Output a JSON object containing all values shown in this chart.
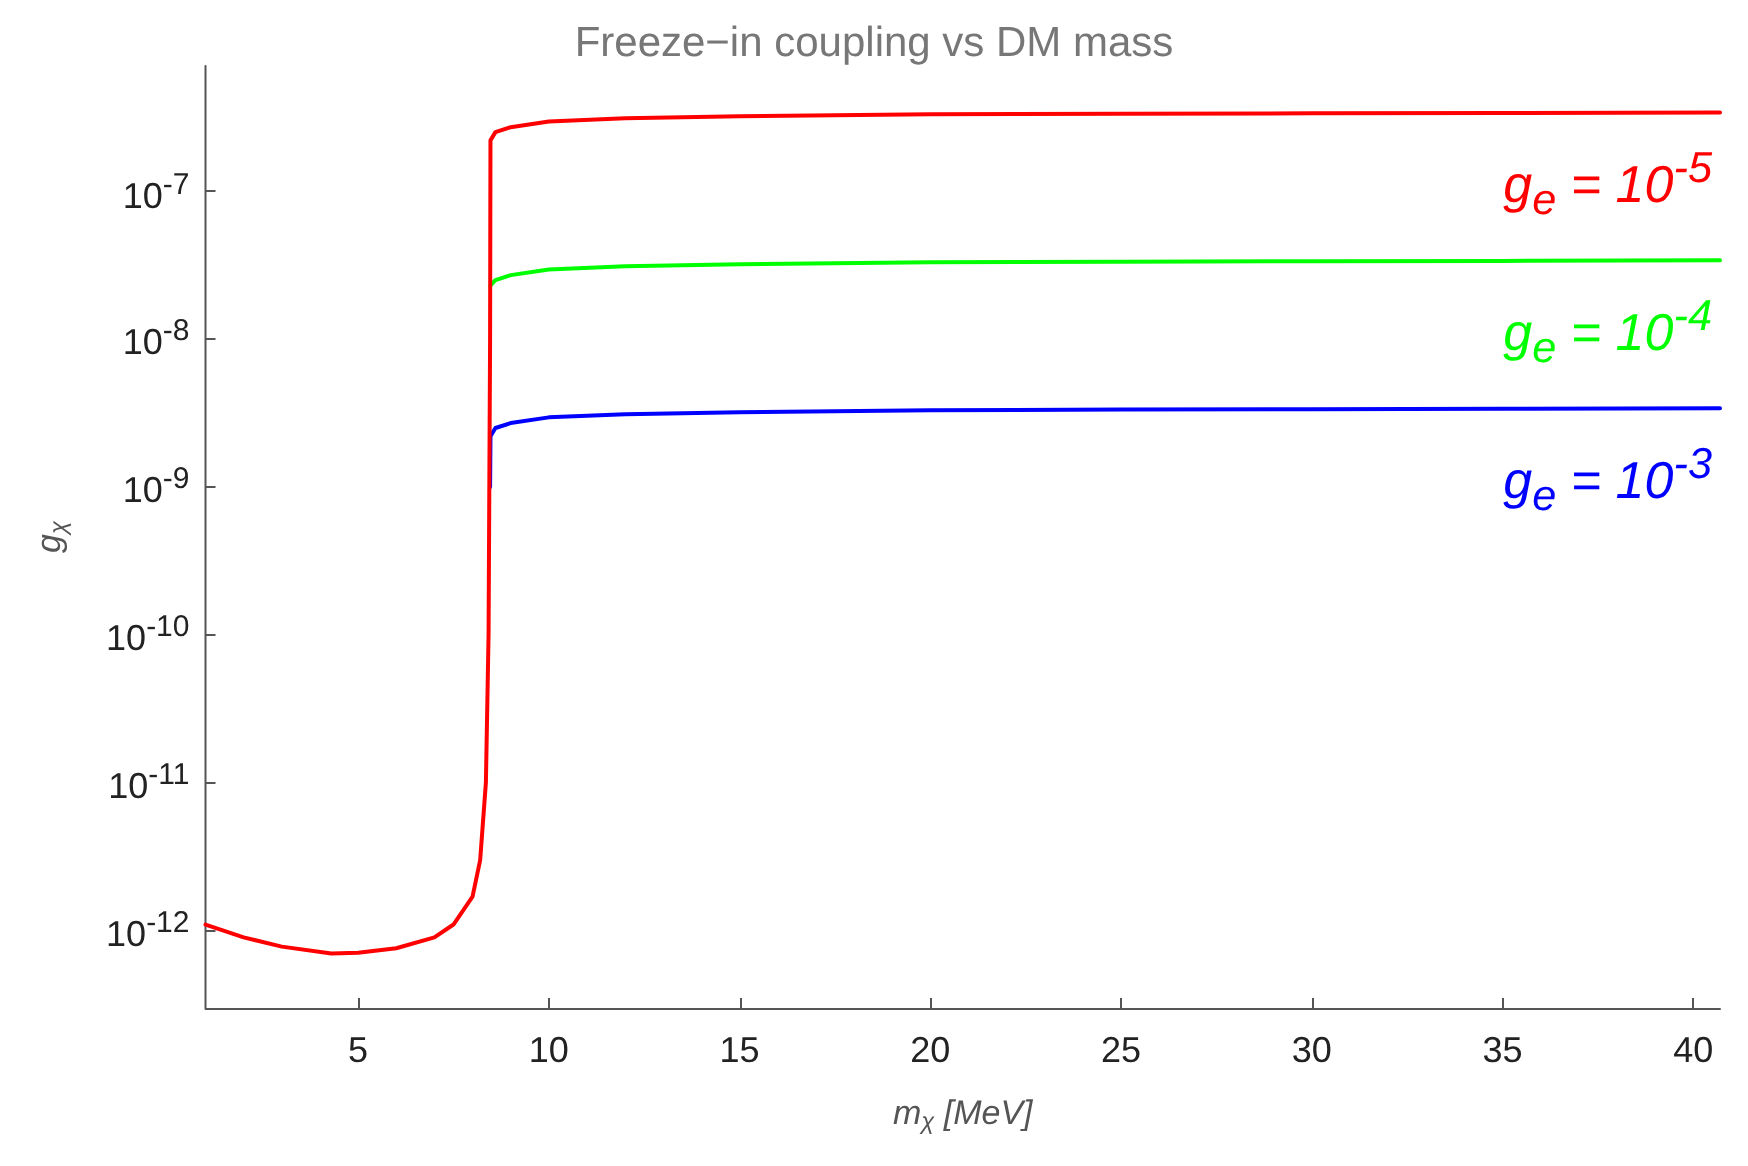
{
  "chart_data": {
    "type": "line",
    "title": "Freeze−in coupling vs DM mass",
    "xlabel": "m$_{χ}$ [MeV]",
    "ylabel": "g$_{χ}$",
    "log": "y",
    "grid": false,
    "marker": "none",
    "line_style": "solid",
    "xlim": [
      1,
      40.7
    ],
    "xticks": [
      5,
      10,
      15,
      20,
      25,
      30,
      35,
      40
    ],
    "ylim": [
      3e-13,
      7e-07
    ],
    "yticks": [
      {
        "value": 1e-12,
        "label": "10$^{-12}$"
      },
      {
        "value": 1e-11,
        "label": "10$^{-11}$"
      },
      {
        "value": 1e-10,
        "label": "10$^{-10}$"
      },
      {
        "value": 1e-09,
        "label": "10$^{-9}$"
      },
      {
        "value": 1e-08,
        "label": "10$^{-8}$"
      },
      {
        "value": 1e-07,
        "label": "10$^{-7}$"
      }
    ],
    "x": [
      1,
      2,
      3,
      4.3,
      5,
      6,
      7,
      7.5,
      8,
      8.2,
      8.35,
      8.42,
      8.46,
      8.47,
      8.6,
      9,
      10,
      12,
      15,
      20,
      25,
      30,
      35,
      40.7
    ],
    "series": [
      {
        "color": "#ff0000",
        "values": [
          1.1e-12,
          9e-13,
          7.8e-13,
          7e-13,
          7.1e-13,
          7.6e-13,
          9e-13,
          1.1e-12,
          1.7e-12,
          3e-12,
          1e-11,
          1e-10,
          1e-08,
          2.2e-07,
          2.5e-07,
          2.7e-07,
          2.95e-07,
          3.1e-07,
          3.2e-07,
          3.3e-07,
          3.33e-07,
          3.35e-07,
          3.37e-07,
          3.4e-07
        ]
      },
      {
        "color": "#00ff00",
        "values": [
          null,
          null,
          null,
          null,
          null,
          null,
          null,
          null,
          null,
          null,
          null,
          null,
          null,
          2.3e-08,
          2.5e-08,
          2.7e-08,
          2.95e-08,
          3.1e-08,
          3.2e-08,
          3.3e-08,
          3.33e-08,
          3.35e-08,
          3.37e-08,
          3.4e-08
        ]
      },
      {
        "color": "#0000ff",
        "values": [
          null,
          null,
          null,
          null,
          null,
          null,
          null,
          null,
          null,
          null,
          null,
          null,
          1e-09,
          2.2e-09,
          2.5e-09,
          2.7e-09,
          2.95e-09,
          3.1e-09,
          3.2e-09,
          3.3e-09,
          3.33e-09,
          3.35e-09,
          3.37e-09,
          3.4e-09
        ]
      }
    ],
    "annotations": [
      "g$_{e}$ = 10$^{-5}$",
      "g$_{e}$ = 10$^{-4}$",
      "g$_{e}$ = 10$^{-3}$"
    ]
  }
}
